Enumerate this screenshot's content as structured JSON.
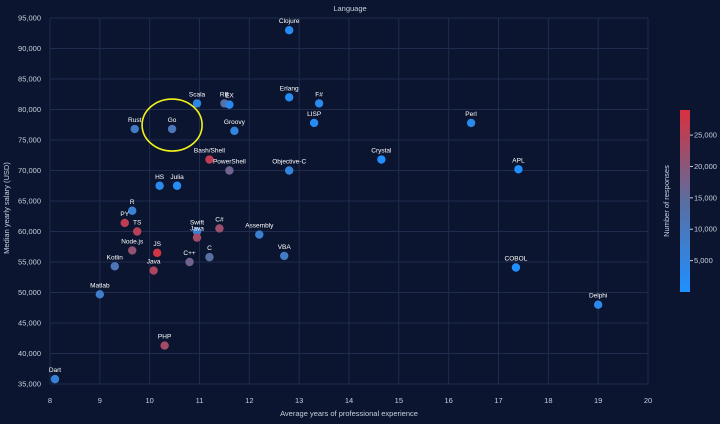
{
  "chart_data": {
    "type": "scatter",
    "title": "Language",
    "xlabel": "Average years of professional experience",
    "ylabel": "Median yearly salary (USD)",
    "xlim": [
      8,
      20
    ],
    "ylim": [
      35000,
      95000
    ],
    "x_ticks": [
      8,
      9,
      10,
      11,
      12,
      13,
      14,
      15,
      16,
      17,
      18,
      19,
      20
    ],
    "y_ticks": [
      35000,
      40000,
      45000,
      50000,
      55000,
      60000,
      65000,
      70000,
      75000,
      80000,
      85000,
      90000,
      95000
    ],
    "y_tick_labels": [
      "35,000",
      "40,000",
      "45,000",
      "50,000",
      "55,000",
      "60,000",
      "65,000",
      "70,000",
      "75,000",
      "80,000",
      "85,000",
      "90,000",
      "95,000"
    ],
    "grid": true,
    "colorbar": {
      "title": "Number of responses",
      "range": [
        0,
        29000
      ],
      "ticks": [
        5000,
        10000,
        15000,
        20000,
        25000
      ],
      "tick_labels": [
        "5,000",
        "10,000",
        "15,000",
        "20,000",
        "25,000"
      ],
      "color_low": "#1e90ff",
      "color_mid": "#5a6ea0",
      "color_high": "#d9303e"
    },
    "highlight": {
      "label": "Go",
      "color": "#f2f21a"
    },
    "points": [
      {
        "label": "Clojure",
        "x": 12.8,
        "y": 93000,
        "responses": 2000
      },
      {
        "label": "Scala",
        "x": 10.95,
        "y": 81000,
        "responses": 4000
      },
      {
        "label": "RB",
        "x": 11.5,
        "y": 81000,
        "responses": 14000
      },
      {
        "label": "EX",
        "x": 11.6,
        "y": 80800,
        "responses": 3000
      },
      {
        "label": "Erlang",
        "x": 12.8,
        "y": 82000,
        "responses": 2000
      },
      {
        "label": "F#",
        "x": 13.4,
        "y": 81000,
        "responses": 3000
      },
      {
        "label": "LISP",
        "x": 13.3,
        "y": 77800,
        "responses": 2000
      },
      {
        "label": "Perl",
        "x": 16.45,
        "y": 77800,
        "responses": 3000
      },
      {
        "label": "Rust",
        "x": 9.7,
        "y": 76800,
        "responses": 9000
      },
      {
        "label": "Go",
        "x": 10.45,
        "y": 76800,
        "responses": 11000
      },
      {
        "label": "Groovy",
        "x": 11.7,
        "y": 76500,
        "responses": 5000
      },
      {
        "label": "Bash/Shell",
        "x": 11.2,
        "y": 71800,
        "responses": 26000
      },
      {
        "label": "PowerShell",
        "x": 11.6,
        "y": 70000,
        "responses": 17000
      },
      {
        "label": "Objective-C",
        "x": 12.8,
        "y": 70000,
        "responses": 5000
      },
      {
        "label": "Crystal",
        "x": 14.65,
        "y": 71800,
        "responses": 400
      },
      {
        "label": "APL",
        "x": 17.4,
        "y": 70200,
        "responses": 300
      },
      {
        "label": "HS",
        "x": 10.2,
        "y": 67500,
        "responses": 3000
      },
      {
        "label": "Julia",
        "x": 10.55,
        "y": 67500,
        "responses": 1500
      },
      {
        "label": "R",
        "x": 9.65,
        "y": 63400,
        "responses": 7000
      },
      {
        "label": "PY",
        "x": 9.5,
        "y": 61400,
        "responses": 26000
      },
      {
        "label": "TS",
        "x": 9.75,
        "y": 60000,
        "responses": 25000
      },
      {
        "label": "Swift",
        "x": 10.95,
        "y": 60000,
        "responses": 7000
      },
      {
        "label": "C#",
        "x": 11.4,
        "y": 60500,
        "responses": 22000
      },
      {
        "label": "Assembly",
        "x": 12.2,
        "y": 59500,
        "responses": 7000
      },
      {
        "label": "Java",
        "x": 10.95,
        "y": 59000,
        "responses": 23000
      },
      {
        "label": "Node.js",
        "x": 9.65,
        "y": 56900,
        "responses": 21000
      },
      {
        "label": "JS",
        "x": 10.15,
        "y": 56500,
        "responses": 28000
      },
      {
        "label": "C",
        "x": 11.2,
        "y": 55800,
        "responses": 14000
      },
      {
        "label": "C++",
        "x": 10.8,
        "y": 55000,
        "responses": 17000
      },
      {
        "label": "VBA",
        "x": 12.7,
        "y": 56000,
        "responses": 9000
      },
      {
        "label": "Kotlin",
        "x": 9.3,
        "y": 54300,
        "responses": 11000
      },
      {
        "label": "Java",
        "x": 10.08,
        "y": 53600,
        "responses": 24000
      },
      {
        "label": "COBOL",
        "x": 17.35,
        "y": 54100,
        "responses": 300
      },
      {
        "label": "Matlab",
        "x": 9.0,
        "y": 49700,
        "responses": 8000
      },
      {
        "label": "Delphi",
        "x": 19.0,
        "y": 48000,
        "responses": 3000
      },
      {
        "label": "PHP",
        "x": 10.3,
        "y": 41300,
        "responses": 23000
      },
      {
        "label": "Dart",
        "x": 8.1,
        "y": 35800,
        "responses": 6000
      }
    ]
  }
}
